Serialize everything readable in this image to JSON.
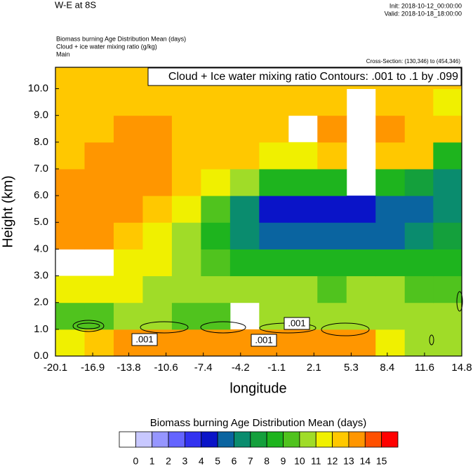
{
  "chart_data": {
    "type": "contour",
    "title": "W-E at 8S",
    "init": "Init: 2018-10-12_00:00:00",
    "valid": "Valid: 2018-10-18_18:00:00",
    "field_label": "Biomass burning Age Distribution Mean   (days)",
    "contour_field_label": "Cloud + ice water mixing ratio   (g/kg)",
    "domain_label": "Main",
    "cross_section": "Cross-Section: (130,346) to (454,346)",
    "contour_title": "Cloud + Ice water mixing ratio Contours: .001 to .1 by .099",
    "contour_labels": [
      ".001",
      ".001",
      ".001"
    ],
    "xlabel": "longitude",
    "ylabel": "Height (km)",
    "xlim": [
      -20.1,
      14.8
    ],
    "ylim": [
      0,
      10.8
    ],
    "xticks": [
      -20.1,
      -16.9,
      -13.8,
      -10.6,
      -7.4,
      -4.2,
      -1.1,
      2.1,
      5.3,
      8.4,
      11.6,
      14.8
    ],
    "yticks": [
      {
        "value": 0,
        "label": "0.0"
      },
      {
        "value": 1,
        "label": "1.0"
      },
      {
        "value": 2,
        "label": "2.0"
      },
      {
        "value": 3,
        "label": "3.0"
      },
      {
        "value": 4,
        "label": "4.0"
      },
      {
        "value": 5,
        "label": "5.0"
      },
      {
        "value": 6,
        "label": "6.0"
      },
      {
        "value": 7,
        "label": "7.0"
      },
      {
        "value": 8,
        "label": "8.0"
      },
      {
        "value": 9,
        "label": "9.0"
      },
      {
        "value": 10,
        "label": "10.0"
      }
    ],
    "x": [
      -18.85,
      -16.35,
      -13.85,
      -11.35,
      -8.85,
      -6.35,
      -3.85,
      -1.35,
      1.15,
      3.65,
      6.15,
      8.65,
      11.15,
      13.55
    ],
    "y": [
      0.5,
      1.5,
      2.5,
      3.5,
      4.5,
      5.5,
      6.5,
      7.5,
      8.5,
      9.5,
      10.5
    ],
    "z": [
      [
        11,
        12.5,
        13.5,
        13.5,
        13.5,
        13.5,
        13.5,
        13.5,
        13.5,
        13.5,
        13.5,
        11,
        10,
        10
      ],
      [
        9,
        9.5,
        10,
        10,
        9.5,
        9.5,
        null,
        10,
        10,
        10,
        10.5,
        10.5,
        10,
        10
      ],
      [
        11,
        11,
        11,
        10.5,
        10.5,
        10,
        10,
        10,
        10,
        9.5,
        10,
        10,
        9.5,
        9.5
      ],
      [
        null,
        null,
        11,
        11,
        10,
        9,
        8,
        8,
        8,
        8,
        8,
        8,
        8,
        8
      ],
      [
        13,
        13,
        12,
        11,
        10,
        8,
        6,
        5,
        5,
        5,
        5,
        5,
        6,
        7
      ],
      [
        13,
        13,
        13,
        12,
        11,
        9,
        6,
        4,
        4,
        4,
        4,
        5,
        5,
        6
      ],
      [
        13,
        13,
        13,
        13,
        12,
        11,
        10,
        8,
        8,
        8,
        null,
        8,
        7,
        6
      ],
      [
        12,
        13,
        13,
        13,
        12,
        12,
        12,
        11,
        11,
        12,
        null,
        12,
        12,
        8
      ],
      [
        12,
        12,
        13,
        13,
        12,
        12,
        12,
        12,
        null,
        13,
        null,
        13,
        12,
        12
      ],
      [
        12,
        12,
        12,
        12,
        12,
        12,
        12,
        12,
        12,
        12,
        null,
        12,
        12,
        11
      ],
      [
        12,
        12,
        12,
        12,
        12,
        12,
        12,
        12,
        12,
        12,
        12,
        12,
        12,
        12
      ]
    ],
    "colorbar": {
      "title": "Biomass burning Age Distribution Mean  (days)",
      "levels": [
        0,
        1,
        2,
        3,
        4,
        5,
        6,
        7,
        8,
        9,
        10,
        11,
        12,
        13,
        14,
        15
      ],
      "colors": [
        "#ffffff",
        "#c8c8ff",
        "#9696ff",
        "#6464ff",
        "#3232f0",
        "#0a14c8",
        "#0a64a0",
        "#0a8c6e",
        "#14a03c",
        "#1eb41e",
        "#50c31e",
        "#a0dc28",
        "#f0f000",
        "#ffc800",
        "#ff9600",
        "#ff5000",
        "#ff0000"
      ]
    }
  }
}
